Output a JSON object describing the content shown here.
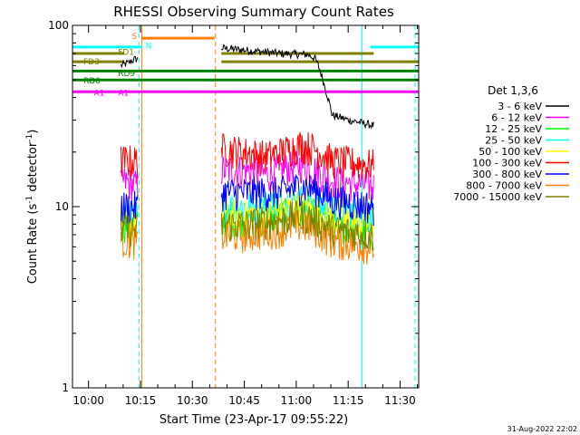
{
  "chart_data": {
    "type": "line",
    "title": "RHESSI Observing Summary Count Rates",
    "xlabel": "Start Time (23-Apr-17 09:55:22)",
    "ylabel": "Count Rate (s",
    "ylabel_sup": "-1",
    "ylabel_tail": " detector",
    "ylabel_sup2": "-1",
    "ylabel_close": ")",
    "yscale": "log",
    "ylim": [
      1,
      100
    ],
    "xlim_minutes": [
      0,
      100
    ],
    "x_ticks": [
      {
        "label": "10:00",
        "minutes": 4.63
      },
      {
        "label": "10:15",
        "minutes": 19.63
      },
      {
        "label": "10:30",
        "minutes": 34.63
      },
      {
        "label": "10:45",
        "minutes": 49.63
      },
      {
        "label": "11:00",
        "minutes": 64.63
      },
      {
        "label": "11:15",
        "minutes": 79.63
      },
      {
        "label": "11:30",
        "minutes": 94.63
      }
    ],
    "y_ticks": [
      {
        "label": "1",
        "value": 1
      },
      {
        "label": "10",
        "value": 10
      },
      {
        "label": "100",
        "value": 100
      }
    ],
    "legend_title": "Det 1,3,6",
    "legend_position": "right",
    "segments": [
      [
        14,
        19
      ],
      [
        43,
        87
      ]
    ],
    "series": [
      {
        "name": "3 - 6 keV",
        "color": "#000000",
        "points": [
          [
            14,
            60
          ],
          [
            16,
            62
          ],
          [
            18,
            65
          ],
          [
            43,
            75
          ],
          [
            50,
            73
          ],
          [
            60,
            70
          ],
          [
            68,
            69
          ],
          [
            70,
            66
          ],
          [
            71,
            60
          ],
          [
            73,
            45
          ],
          [
            75,
            32
          ],
          [
            80,
            30
          ],
          [
            87,
            28
          ]
        ]
      },
      {
        "name": "6 - 12 keV",
        "color": "#ff00ff",
        "points": [
          [
            14,
            14
          ],
          [
            19,
            13
          ],
          [
            43,
            16
          ],
          [
            50,
            16
          ],
          [
            56,
            15
          ],
          [
            60,
            16
          ],
          [
            66,
            17
          ],
          [
            70,
            16
          ],
          [
            75,
            14
          ],
          [
            87,
            13
          ]
        ]
      },
      {
        "name": "12 - 25 keV",
        "color": "#00ff00",
        "points": [
          [
            14,
            8
          ],
          [
            19,
            8
          ],
          [
            43,
            8.5
          ],
          [
            50,
            8.5
          ],
          [
            60,
            9
          ],
          [
            66,
            9.5
          ],
          [
            70,
            9
          ],
          [
            75,
            8
          ],
          [
            87,
            7
          ]
        ]
      },
      {
        "name": "25 - 50 keV",
        "color": "#00ffff",
        "points": [
          [
            14,
            9
          ],
          [
            19,
            9
          ],
          [
            43,
            10
          ],
          [
            50,
            10
          ],
          [
            60,
            10.5
          ],
          [
            66,
            11
          ],
          [
            70,
            10.5
          ],
          [
            75,
            9.5
          ],
          [
            87,
            9
          ]
        ]
      },
      {
        "name": "50 - 100 keV",
        "color": "#ffff00",
        "points": [
          [
            14,
            8
          ],
          [
            19,
            8
          ],
          [
            43,
            9
          ],
          [
            50,
            9
          ],
          [
            60,
            9.5
          ],
          [
            66,
            10
          ],
          [
            70,
            9.5
          ],
          [
            75,
            8.5
          ],
          [
            87,
            8
          ]
        ]
      },
      {
        "name": "100 - 300 keV",
        "color": "#ff0000",
        "points": [
          [
            14,
            18
          ],
          [
            19,
            18
          ],
          [
            43,
            21
          ],
          [
            50,
            20
          ],
          [
            56,
            19
          ],
          [
            60,
            20
          ],
          [
            66,
            22
          ],
          [
            70,
            21
          ],
          [
            75,
            18
          ],
          [
            87,
            17
          ]
        ]
      },
      {
        "name": "300 - 800 keV",
        "color": "#0000ff",
        "points": [
          [
            14,
            10
          ],
          [
            19,
            10
          ],
          [
            43,
            12
          ],
          [
            50,
            12
          ],
          [
            60,
            12
          ],
          [
            66,
            13
          ],
          [
            70,
            12.5
          ],
          [
            75,
            11
          ],
          [
            87,
            10
          ]
        ]
      },
      {
        "name": "800 - 7000 keV",
        "color": "#ff8000",
        "points": [
          [
            14,
            6.5
          ],
          [
            19,
            6.5
          ],
          [
            43,
            7
          ],
          [
            50,
            7
          ],
          [
            60,
            7.5
          ],
          [
            66,
            8
          ],
          [
            70,
            7.5
          ],
          [
            75,
            6.5
          ],
          [
            87,
            6
          ]
        ]
      },
      {
        "name": "7000 - 15000 keV",
        "color": "#808000",
        "points": [
          [
            14,
            7.5
          ],
          [
            19,
            7.5
          ],
          [
            43,
            8
          ],
          [
            50,
            8
          ],
          [
            60,
            8.5
          ],
          [
            66,
            9
          ],
          [
            70,
            8.5
          ],
          [
            75,
            7.5
          ],
          [
            87,
            7
          ]
        ]
      }
    ],
    "flag_bars": [
      {
        "label": "S",
        "color": "#ff8000",
        "y": 85,
        "x0": 20,
        "x1": 41
      },
      {
        "label": "N",
        "color": "#00ffff",
        "y": 76,
        "x0": 0,
        "x1": 20
      },
      {
        "label": "N",
        "color": "#00ffff",
        "y": 76,
        "x0": 86,
        "x1": 100
      },
      {
        "label": "FD1",
        "color": "#808000",
        "y": 70,
        "x0": 0,
        "x1": 15
      },
      {
        "label": "FD1",
        "color": "#808000",
        "y": 70,
        "x0": 43,
        "x1": 87
      },
      {
        "label": "FD3",
        "color": "#808000",
        "y": 63,
        "x0": 0,
        "x1": 15
      },
      {
        "label": "FD3",
        "color": "#808000",
        "y": 63,
        "x0": 43,
        "x1": 100
      },
      {
        "label": "RD9",
        "color": "#008000",
        "y": 56,
        "x0": 0,
        "x1": 100
      },
      {
        "label": "RD6",
        "color": "#008000",
        "y": 50,
        "x0": 0,
        "x1": 100
      },
      {
        "label": "A1",
        "color": "#ff00ff",
        "y": 43,
        "x0": 0,
        "x1": 100
      }
    ],
    "flag_labels": [
      {
        "text": "S",
        "color": "#ff8000",
        "y": 88,
        "minutes": 14
      },
      {
        "text": "N",
        "color": "#00ffff",
        "y": 78,
        "minutes": 18
      },
      {
        "text": "FD1",
        "color": "#808000",
        "y": 72,
        "minutes": 10
      },
      {
        "text": "FD3",
        "color": "#808000",
        "y": 64,
        "minutes": 0
      },
      {
        "text": "RD9",
        "color": "#008000",
        "y": 55,
        "minutes": 10
      },
      {
        "text": "RD6",
        "color": "#008000",
        "y": 50,
        "minutes": 0
      },
      {
        "text": "A1",
        "color": "#ff00ff",
        "y": 43,
        "minutes": 3
      },
      {
        "text": "A1",
        "color": "#ff00ff",
        "y": 43,
        "minutes": 10
      }
    ],
    "vertical_markers": [
      {
        "minutes": 0,
        "color": "#00ffff",
        "style": "solid"
      },
      {
        "minutes": 19.2,
        "color": "#00ffff",
        "style": "dashed"
      },
      {
        "minutes": 20.0,
        "color": "#ff8000",
        "style": "solid"
      },
      {
        "minutes": 41.3,
        "color": "#ff8000",
        "style": "dashed"
      },
      {
        "minutes": 83.6,
        "color": "#00ffff",
        "style": "solid"
      },
      {
        "minutes": 104.0,
        "color": "#00ffff",
        "style": "dashed"
      }
    ],
    "timestamp": "31-Aug-2022 22:02"
  }
}
